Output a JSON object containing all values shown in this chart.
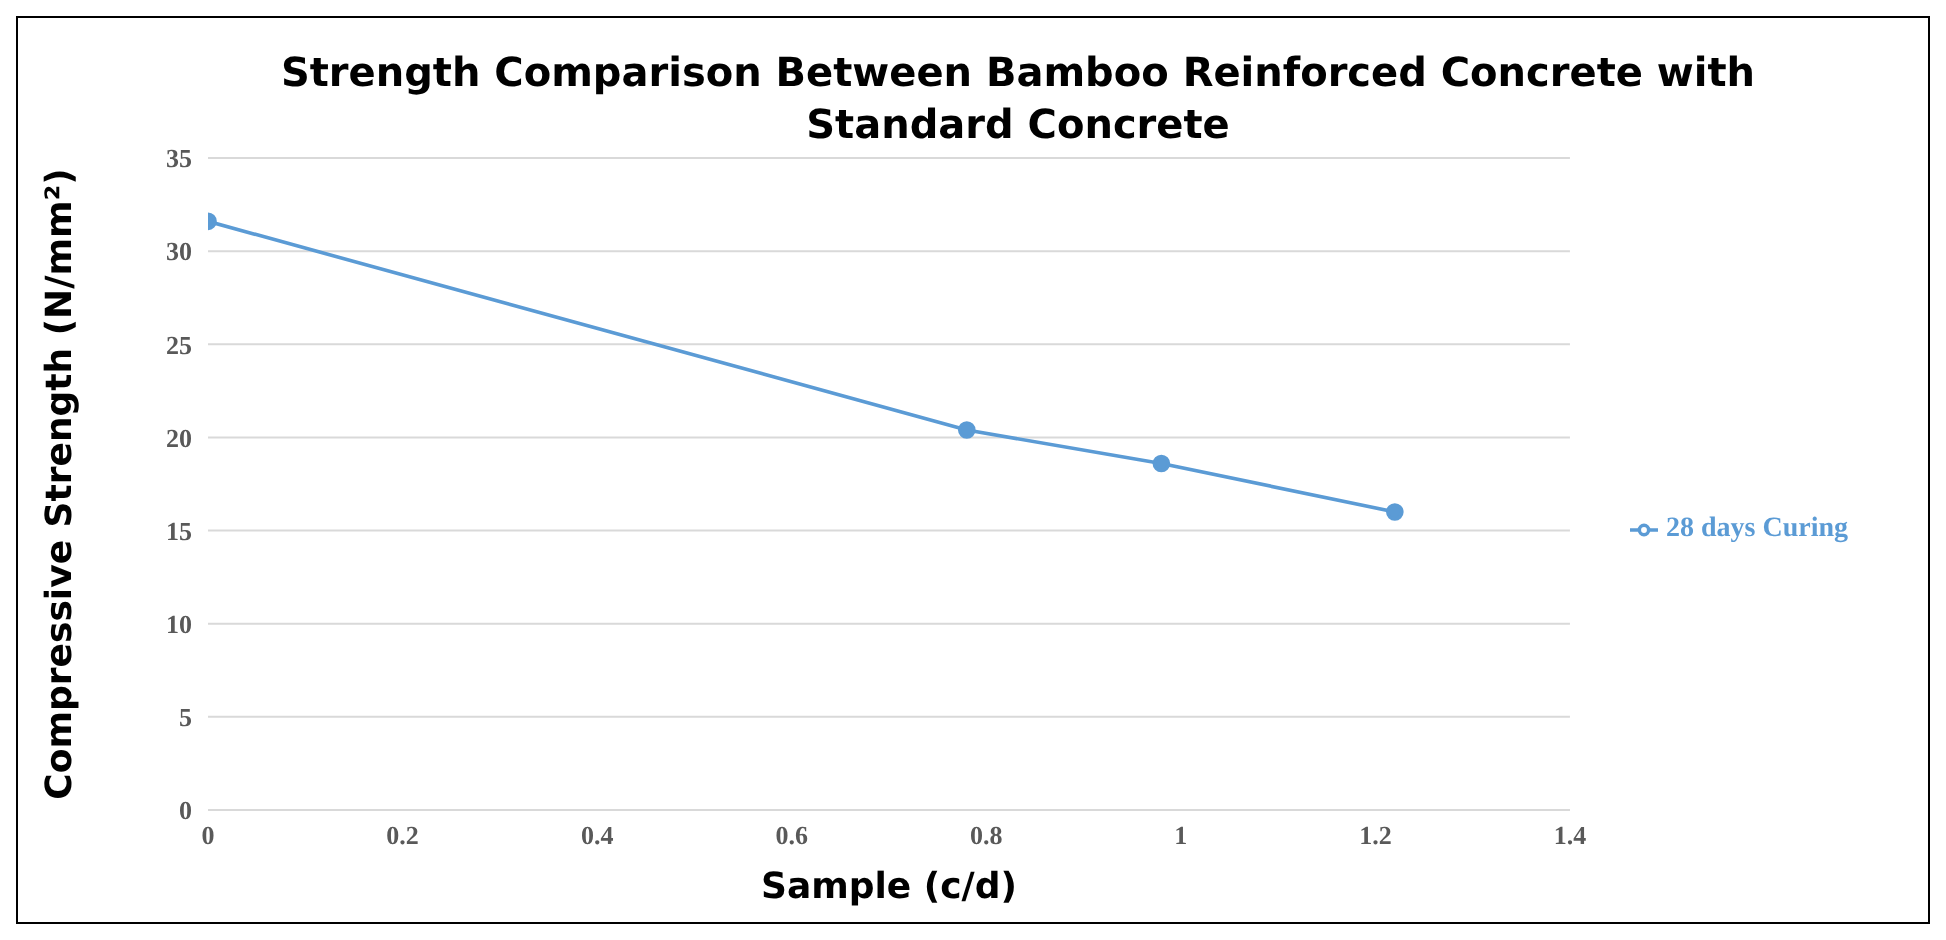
{
  "chart_data": {
    "type": "line",
    "title": "Strength Comparison Between Bamboo Reinforced Concrete with Standard Concrete",
    "xlabel": "Sample (c/d)",
    "ylabel": "Compressive Strength (N/mm²)",
    "x": [
      0,
      0.78,
      0.98,
      1.22
    ],
    "series": [
      {
        "name": "28 days Curing",
        "color": "#5b9bd5",
        "values": [
          31.6,
          20.4,
          18.6,
          16.0
        ]
      }
    ],
    "xlim": [
      0,
      1.4
    ],
    "xticks": [
      0,
      0.2,
      0.4,
      0.6,
      0.8,
      1,
      1.2,
      1.4
    ],
    "ylim": [
      0,
      35
    ],
    "yticks": [
      0,
      5,
      10,
      15,
      20,
      25,
      30,
      35
    ],
    "grid": "y",
    "legend": "right",
    "marker": "circle",
    "line_style": "solid"
  }
}
